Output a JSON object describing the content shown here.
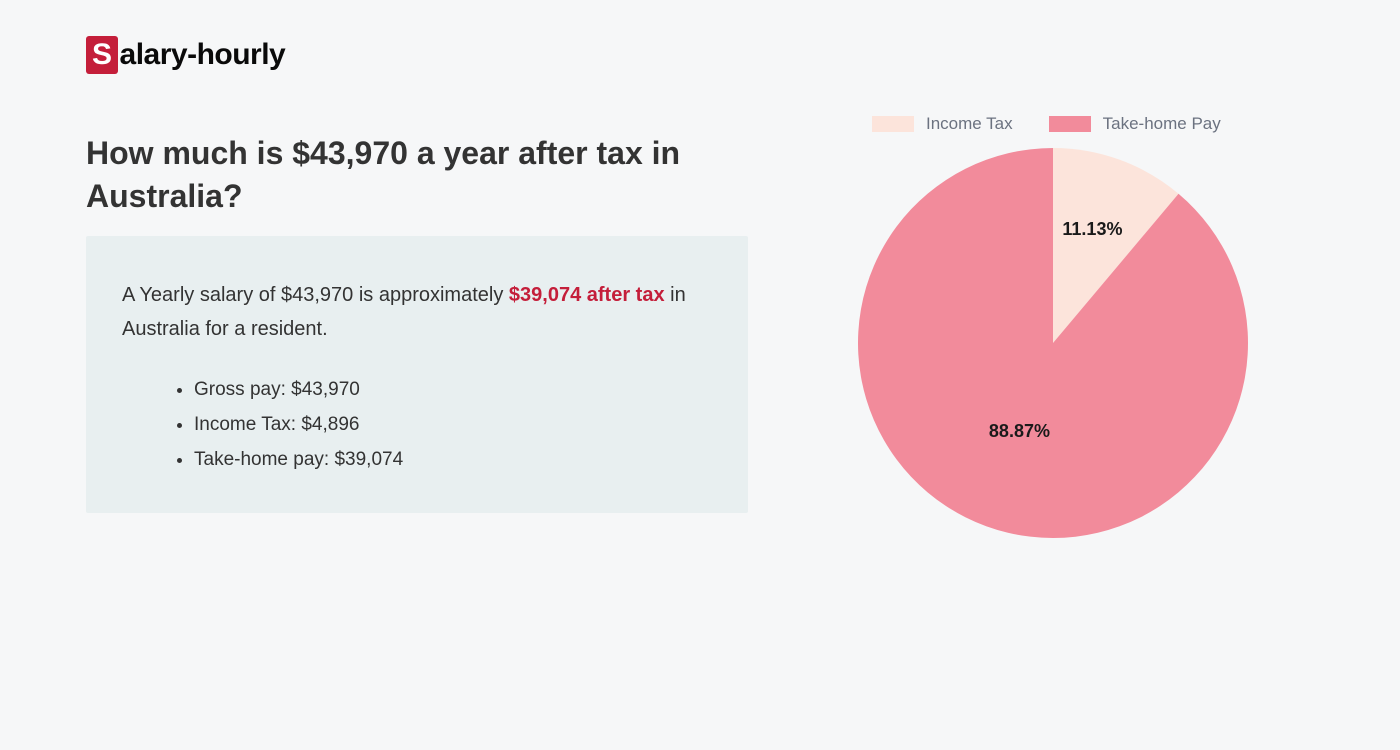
{
  "logo": {
    "prefix": "S",
    "rest": "alary-hourly"
  },
  "heading": "How much is $43,970 a year after tax in Australia?",
  "infobox": {
    "text_before": "A Yearly salary of $43,970 is approximately ",
    "highlight": "$39,074 after tax",
    "text_after": " in Australia for a resident.",
    "bullets": [
      "Gross pay: $43,970",
      "Income Tax: $4,896",
      "Take-home pay: $39,074"
    ]
  },
  "chart": {
    "type": "pie",
    "background_color": "#f6f7f8",
    "radius": 195,
    "slices": [
      {
        "label": "Income Tax",
        "value": 11.13,
        "display": "11.13%",
        "color": "#fce4db"
      },
      {
        "label": "Take-home Pay",
        "value": 88.87,
        "display": "88.87%",
        "color": "#f28b9b"
      }
    ],
    "legend": {
      "items": [
        {
          "label": "Income Tax",
          "color": "#fce4db"
        },
        {
          "label": "Take-home Pay",
          "color": "#f28b9b"
        }
      ],
      "fontsize": 17,
      "text_color": "#6b7280"
    },
    "slice_label_fontsize": 18,
    "slice_label_color": "#1a1a1a",
    "start_angle_deg": -90
  },
  "colors": {
    "page_bg": "#f6f7f8",
    "box_bg": "#e8eff0",
    "text": "#333333",
    "accent": "#c41e3a"
  }
}
